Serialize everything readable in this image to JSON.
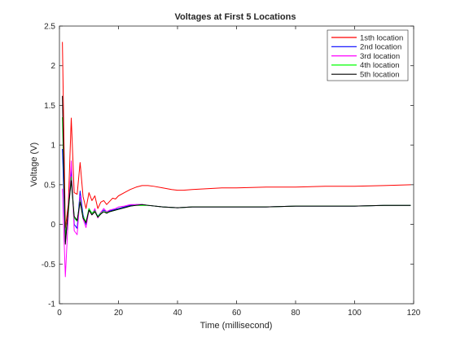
{
  "chart_data": {
    "type": "line",
    "title": "Voltages at First 5 Locations",
    "xlabel": "Time (millisecond)",
    "ylabel": "Voltage (V)",
    "xlim": [
      0,
      120
    ],
    "ylim": [
      -1,
      2.5
    ],
    "xticks": [
      0,
      20,
      40,
      60,
      80,
      100,
      120
    ],
    "yticks": [
      -1,
      -0.5,
      0,
      0.5,
      1,
      1.5,
      2,
      2.5
    ],
    "xtick_labels": [
      "0",
      "20",
      "40",
      "60",
      "80",
      "100",
      "120"
    ],
    "ytick_labels": [
      "-1",
      "-0.5",
      "0",
      "0.5",
      "1",
      "1.5",
      "2",
      "2.5"
    ],
    "grid": false,
    "legend_position": "top-right",
    "series": [
      {
        "name": "1sth location",
        "color": "#ff0000",
        "x": [
          1,
          2,
          3,
          4,
          5,
          6,
          7,
          8,
          9,
          10,
          11,
          12,
          13,
          14,
          15,
          16,
          17,
          18,
          19,
          20,
          22,
          24,
          26,
          28,
          30,
          32,
          35,
          38,
          40,
          42,
          45,
          50,
          55,
          60,
          70,
          80,
          90,
          100,
          110,
          119
        ],
        "y": [
          2.3,
          -0.05,
          0.25,
          1.34,
          0.4,
          0.38,
          0.78,
          0.35,
          0.2,
          0.4,
          0.3,
          0.36,
          0.2,
          0.28,
          0.3,
          0.25,
          0.29,
          0.33,
          0.32,
          0.36,
          0.4,
          0.44,
          0.47,
          0.49,
          0.49,
          0.48,
          0.46,
          0.44,
          0.43,
          0.43,
          0.44,
          0.45,
          0.46,
          0.46,
          0.47,
          0.47,
          0.48,
          0.48,
          0.49,
          0.5
        ]
      },
      {
        "name": "2nd location",
        "color": "#0000ff",
        "x": [
          1,
          2,
          3,
          4,
          5,
          6,
          7,
          8,
          9,
          10,
          11,
          12,
          13,
          14,
          15,
          16,
          17,
          18,
          19,
          20,
          22,
          24,
          26,
          28,
          30,
          35,
          40,
          45,
          50,
          60,
          70,
          80,
          90,
          100,
          110,
          119
        ],
        "y": [
          0.95,
          -0.22,
          0.18,
          0.7,
          0.0,
          -0.05,
          0.42,
          0.12,
          0.0,
          0.2,
          0.14,
          0.18,
          0.1,
          0.15,
          0.18,
          0.16,
          0.17,
          0.18,
          0.19,
          0.2,
          0.22,
          0.24,
          0.25,
          0.25,
          0.24,
          0.22,
          0.21,
          0.22,
          0.22,
          0.22,
          0.22,
          0.23,
          0.23,
          0.23,
          0.24,
          0.24
        ]
      },
      {
        "name": "3rd location",
        "color": "#ff00ff",
        "x": [
          1,
          2,
          3,
          4,
          5,
          6,
          7,
          8,
          9,
          10,
          11,
          12,
          13,
          14,
          15,
          16,
          17,
          18,
          19,
          20,
          22,
          24,
          26,
          28,
          30,
          35,
          40,
          45,
          50,
          60,
          70,
          80,
          90,
          100,
          110,
          119
        ],
        "y": [
          0.45,
          -0.66,
          0.1,
          0.8,
          -0.08,
          -0.13,
          0.36,
          0.07,
          -0.04,
          0.18,
          0.12,
          0.2,
          0.08,
          0.15,
          0.2,
          0.16,
          0.18,
          0.19,
          0.2,
          0.22,
          0.23,
          0.25,
          0.25,
          0.25,
          0.24,
          0.22,
          0.21,
          0.22,
          0.22,
          0.22,
          0.22,
          0.23,
          0.23,
          0.23,
          0.24,
          0.24
        ]
      },
      {
        "name": "4th location",
        "color": "#00ff00",
        "x": [
          1,
          2,
          3,
          4,
          5,
          6,
          7,
          8,
          9,
          10,
          11,
          12,
          13,
          14,
          15,
          16,
          17,
          18,
          19,
          20,
          22,
          24,
          26,
          28,
          30,
          35,
          40,
          45,
          50,
          60,
          70,
          80,
          90,
          100,
          110,
          119
        ],
        "y": [
          1.35,
          -0.15,
          0.15,
          0.6,
          0.08,
          0.04,
          0.3,
          0.1,
          0.03,
          0.2,
          0.14,
          0.17,
          0.1,
          0.14,
          0.16,
          0.15,
          0.16,
          0.17,
          0.18,
          0.19,
          0.21,
          0.23,
          0.24,
          0.24,
          0.24,
          0.22,
          0.21,
          0.22,
          0.22,
          0.22,
          0.22,
          0.23,
          0.23,
          0.23,
          0.24,
          0.24
        ]
      },
      {
        "name": "5th location",
        "color": "#000000",
        "x": [
          1,
          2,
          3,
          4,
          5,
          6,
          7,
          8,
          9,
          10,
          11,
          12,
          13,
          14,
          15,
          16,
          17,
          18,
          19,
          20,
          22,
          24,
          26,
          28,
          30,
          35,
          40,
          45,
          50,
          60,
          70,
          80,
          90,
          100,
          110,
          119
        ],
        "y": [
          1.62,
          -0.25,
          0.2,
          0.55,
          0.1,
          0.05,
          0.28,
          0.08,
          0.02,
          0.18,
          0.12,
          0.16,
          0.09,
          0.13,
          0.16,
          0.14,
          0.16,
          0.17,
          0.18,
          0.19,
          0.21,
          0.23,
          0.24,
          0.25,
          0.24,
          0.22,
          0.21,
          0.22,
          0.22,
          0.22,
          0.22,
          0.23,
          0.23,
          0.23,
          0.24,
          0.24
        ]
      }
    ]
  }
}
